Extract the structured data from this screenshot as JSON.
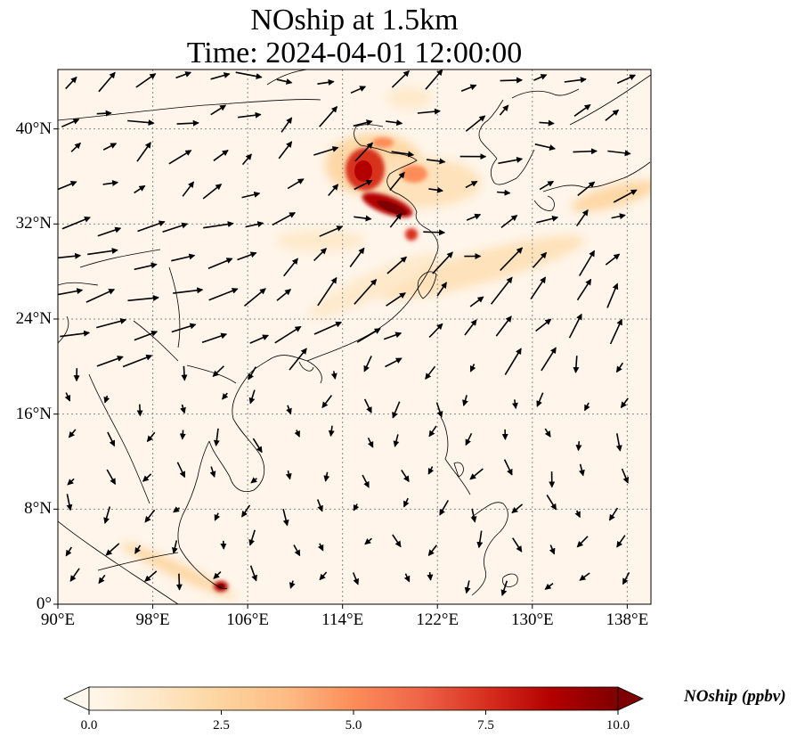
{
  "title": {
    "line1": "NOship at 1.5km",
    "line2": "Time: 2024-04-01 12:00:00"
  },
  "map": {
    "lon_range": [
      90,
      140
    ],
    "lat_range": [
      0,
      45
    ],
    "lon_ticks": [
      "90°E",
      "98°E",
      "106°E",
      "114°E",
      "122°E",
      "130°E",
      "138°E"
    ],
    "lat_ticks": [
      "0°",
      "8°N",
      "16°N",
      "24°N",
      "32°N",
      "40°N"
    ],
    "gridlines": true
  },
  "colorbar": {
    "label": "NOship (ppbv)",
    "ticks": [
      "0.0",
      "2.5",
      "5.0",
      "7.5",
      "10.0"
    ],
    "min": 0,
    "max": 10,
    "colormap": "OrRd",
    "colors": [
      "#fff7ec",
      "#fee8c8",
      "#fdd49e",
      "#fdbb84",
      "#fc8d59",
      "#ef6548",
      "#d7301f",
      "#b30000",
      "#7f0000"
    ],
    "extend": "both"
  },
  "chart_data": {
    "type": "heatmap",
    "variable": "NOship",
    "units": "ppbv",
    "level": "1.5km",
    "time": "2024-04-01 12:00:00",
    "hotspots": [
      {
        "lon": 116.5,
        "lat": 37.5,
        "value": 9.0
      },
      {
        "lon": 118.0,
        "lat": 34.5,
        "value": 10.0
      },
      {
        "lon": 120.0,
        "lat": 36.8,
        "value": 7.0
      },
      {
        "lon": 120.5,
        "lat": 31.5,
        "value": 8.0
      },
      {
        "lon": 103.8,
        "lat": 1.4,
        "value": 9.0
      },
      {
        "lon": 126.0,
        "lat": 28.0,
        "value": 2.5
      },
      {
        "lon": 136.0,
        "lat": 34.0,
        "value": 2.0
      }
    ],
    "wind_field": "vector arrows"
  }
}
